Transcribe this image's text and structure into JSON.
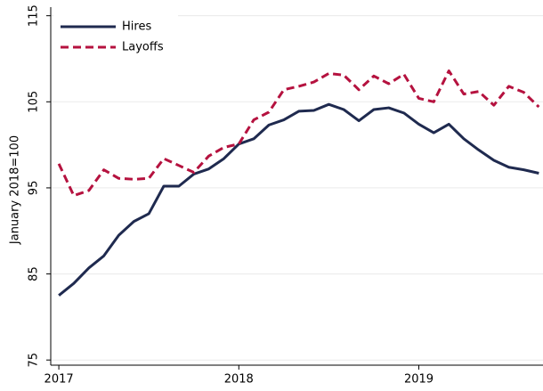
{
  "chart_data": {
    "type": "line",
    "ylabel": "January 2018=100",
    "x": [
      2017,
      2017.083,
      2017.167,
      2017.25,
      2017.333,
      2017.417,
      2017.5,
      2017.583,
      2017.667,
      2017.75,
      2017.833,
      2017.917,
      2018,
      2018.083,
      2018.167,
      2018.25,
      2018.333,
      2018.417,
      2018.5,
      2018.583,
      2018.667,
      2018.75,
      2018.833,
      2018.917,
      2019,
      2019.083,
      2019.167,
      2019.25,
      2019.333,
      2019.417,
      2019.5,
      2019.583,
      2019.667
    ],
    "series": [
      {
        "name": "Hires",
        "color": "#1f2a4f",
        "dashed": false,
        "values": [
          82.5,
          83.9,
          85.7,
          87.1,
          89.5,
          91.1,
          92.0,
          95.2,
          95.2,
          96.6,
          97.2,
          98.4,
          100.1,
          100.7,
          102.3,
          102.9,
          103.9,
          104.0,
          104.7,
          104.1,
          102.8,
          104.1,
          104.3,
          103.7,
          102.4,
          101.4,
          102.4,
          100.7,
          99.4,
          98.2,
          97.4,
          97.1,
          96.7
        ]
      },
      {
        "name": "Layoffs",
        "color": "#b5123f",
        "dashed": true,
        "values": [
          97.8,
          94.1,
          94.7,
          97.1,
          96.1,
          96.0,
          96.1,
          98.4,
          97.6,
          96.8,
          98.7,
          99.7,
          100.1,
          102.9,
          103.8,
          106.4,
          106.8,
          107.3,
          108.3,
          108.1,
          106.4,
          108.0,
          107.1,
          108.2,
          105.4,
          105.0,
          108.6,
          105.9,
          106.2,
          104.6,
          106.8,
          106.1,
          104.4
        ]
      }
    ],
    "xlim": [
      2016.955,
      2019.69
    ],
    "xticks": [
      2017,
      2018,
      2019
    ],
    "ylim": [
      74.4,
      116.0
    ],
    "yticks": [
      75,
      85,
      95,
      105,
      115
    ],
    "grid": true,
    "legend": "top-left"
  }
}
